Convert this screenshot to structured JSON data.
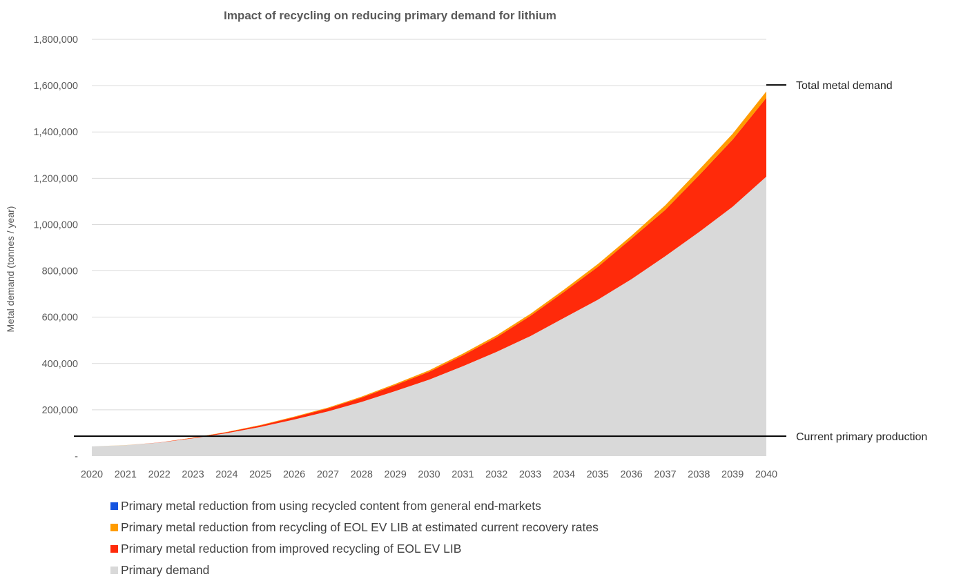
{
  "chart_data": {
    "type": "area",
    "title": "Impact of recycling on reducing primary demand for lithium",
    "ylabel": "Metal demand (tonnes / year)",
    "xlabel": "",
    "ylim": [
      0,
      1800000
    ],
    "yticks": [
      0,
      200000,
      400000,
      600000,
      800000,
      1000000,
      1200000,
      1400000,
      1600000,
      1800000
    ],
    "ytick_labels": [
      "-",
      "200,000",
      "400,000",
      "600,000",
      "800,000",
      "1,000,000",
      "1,200,000",
      "1,400,000",
      "1,600,000",
      "1,800,000"
    ],
    "x": [
      "2020",
      "2021",
      "2022",
      "2023",
      "2024",
      "2025",
      "2026",
      "2027",
      "2028",
      "2029",
      "2030",
      "2031",
      "2032",
      "2033",
      "2034",
      "2035",
      "2036",
      "2037",
      "2038",
      "2039",
      "2040"
    ],
    "grid": true,
    "legend_position": "bottom",
    "stacked": true,
    "series": [
      {
        "name": "Primary demand",
        "color": "#d9d9d9",
        "values": [
          42000,
          47000,
          58000,
          77000,
          99000,
          126000,
          158000,
          193000,
          234000,
          281000,
          330000,
          388000,
          450000,
          518000,
          597000,
          675000,
          764000,
          863000,
          967000,
          1077000,
          1207000
        ]
      },
      {
        "name": "Primary metal reduction from improved recycling of EOL EV LIB",
        "color": "#ff2a0a",
        "values": [
          0,
          200,
          600,
          2000,
          4000,
          6500,
          10000,
          13000,
          19000,
          26000,
          34000,
          47000,
          63000,
          87000,
          112000,
          142000,
          175000,
          200000,
          245000,
          290000,
          340000
        ]
      },
      {
        "name": "Primary metal reduction from recycling of EOL EV LIB at estimated current recovery rates",
        "color": "#ff9b00",
        "values": [
          0,
          100,
          300,
          800,
          1300,
          1800,
          2500,
          3200,
          4000,
          5000,
          6500,
          7500,
          8500,
          9000,
          10000,
          12000,
          13000,
          20000,
          24000,
          25000,
          28000
        ]
      },
      {
        "name": "Primary metal reduction from using recycled content from general end-markets",
        "color": "#1554e0",
        "values": [
          0,
          0,
          0,
          0,
          0,
          0,
          0,
          0,
          0,
          0,
          0,
          0,
          0,
          0,
          0,
          0,
          0,
          0,
          0,
          0,
          0
        ]
      }
    ],
    "legend_entries": [
      {
        "label": "Primary metal reduction from using recycled content from general end-markets",
        "color": "#1554e0"
      },
      {
        "label": "Primary metal reduction from recycling of EOL EV LIB at estimated current recovery rates",
        "color": "#ff9b00"
      },
      {
        "label": "Primary metal reduction from improved recycling of EOL EV LIB",
        "color": "#ff2a0a"
      },
      {
        "label": "Primary demand",
        "color": "#d9d9d9"
      }
    ],
    "reference_lines": [
      {
        "label": "Total metal demand",
        "value": 1603000,
        "span": "end"
      },
      {
        "label": "Current primary production",
        "value": 86000,
        "span": "full"
      }
    ]
  }
}
